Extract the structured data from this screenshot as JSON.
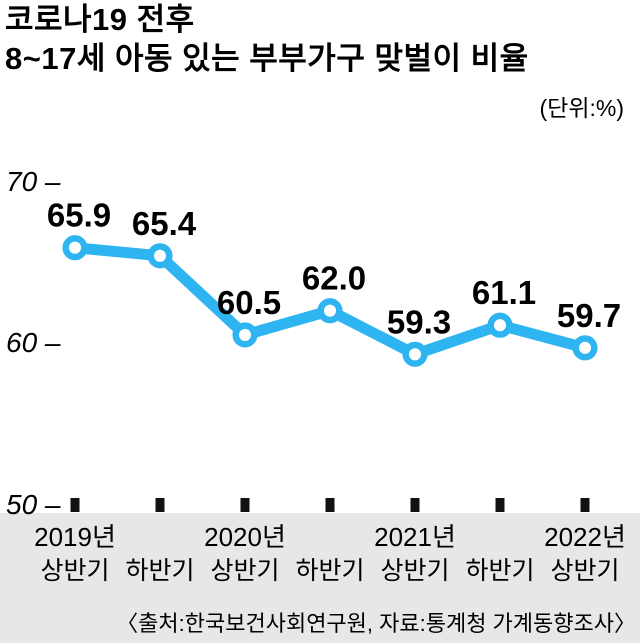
{
  "header": {
    "title_line1": "코로나19 전후",
    "title_line2": "8~17세 아동 있는 부부가구 맞벌이 비율",
    "unit_label": "(단위:%)"
  },
  "chart_data": {
    "type": "line",
    "title": "코로나19 전후 8~17세 아동 있는 부부가구 맞벌이 비율",
    "unit": "%",
    "categories": [
      "2019년 상반기",
      "2019년 하반기",
      "2020년 상반기",
      "2020년 하반기",
      "2021년 상반기",
      "2021년 하반기",
      "2022년 상반기"
    ],
    "values": [
      65.9,
      65.4,
      60.5,
      62.0,
      59.3,
      61.1,
      59.7
    ],
    "value_labels": [
      "65.9",
      "65.4",
      "60.5",
      "62.0",
      "59.3",
      "61.1",
      "59.7"
    ],
    "ylim": [
      50,
      70
    ],
    "yticks": [
      70,
      60,
      50
    ],
    "grid": false,
    "legend": false,
    "line_color": "#2eb5f1",
    "marker_style": "white circle with blue ring"
  },
  "y_axis": {
    "ticks": [
      {
        "label": "70",
        "value": 70
      },
      {
        "label": "60",
        "value": 60
      },
      {
        "label": "50",
        "value": 50
      }
    ]
  },
  "x_axis": {
    "years": [
      {
        "label": "2019년",
        "col": 0
      },
      {
        "label": "2020년",
        "col": 2
      },
      {
        "label": "2021년",
        "col": 4
      },
      {
        "label": "2022년",
        "col": 6
      }
    ],
    "halves": [
      "상반기",
      "하반기",
      "상반기",
      "하반기",
      "상반기",
      "하반기",
      "상반기"
    ]
  },
  "footer": {
    "source": "〈출처:한국보건사회연구원, 자료:통계청 가계동향조사〉"
  },
  "colors": {
    "line": "#2eb5f1",
    "marker_fill": "#ffffff",
    "text": "#000000",
    "axis_tick": "#111111",
    "band_background": "#e7e7e7",
    "page_background": "#ffffff"
  }
}
